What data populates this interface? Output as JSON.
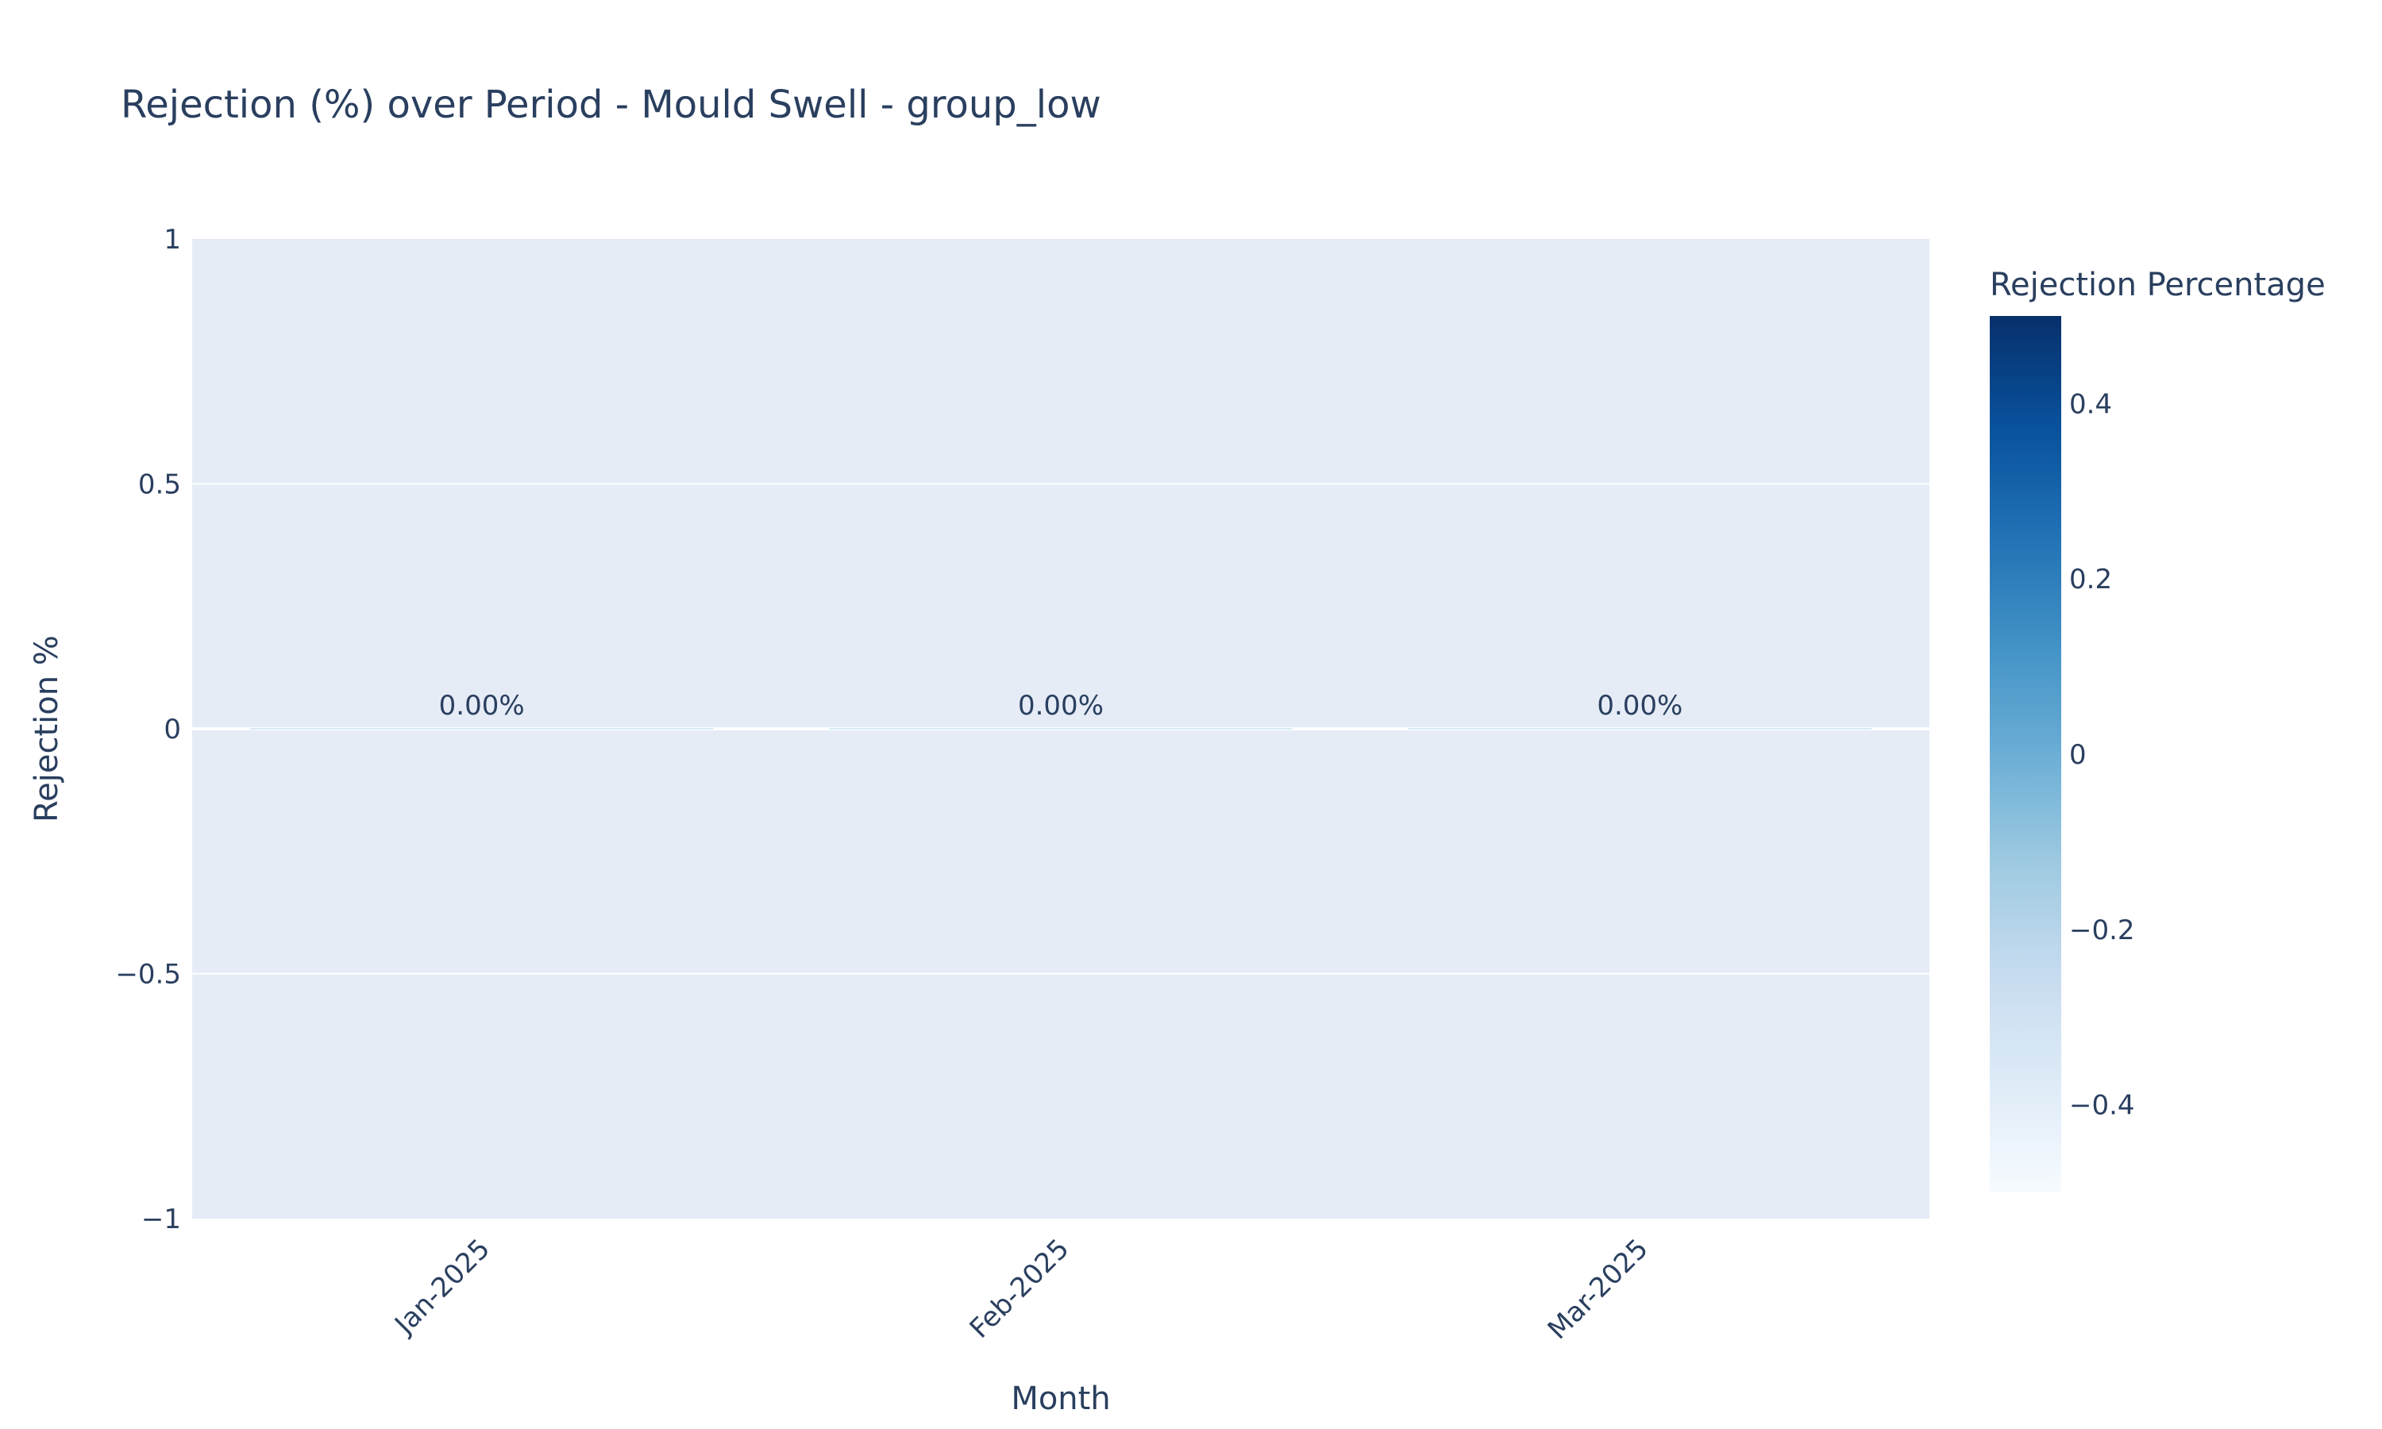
{
  "chart_data": {
    "type": "bar",
    "title": "Rejection (%) over Period - Mould Swell - group_low",
    "xlabel": "Month",
    "ylabel": "Rejection %",
    "categories": [
      "Jan-2025",
      "Feb-2025",
      "Mar-2025"
    ],
    "values": [
      0,
      0,
      0
    ],
    "data_labels": [
      "0.00%",
      "0.00%",
      "0.00%"
    ],
    "ylim": [
      -1,
      1
    ],
    "yticks": [
      1,
      0.5,
      0,
      -0.5,
      -1
    ],
    "ytick_labels": [
      "1",
      "0.5",
      "0",
      "−0.5",
      "−1"
    ],
    "x_tick_rotation": -45,
    "grid": true,
    "plot_background": "#e5ecf6",
    "colorbar": {
      "title": "Rejection Percentage",
      "range": [
        -0.5,
        0.5
      ],
      "ticks": [
        0.4,
        0.2,
        0,
        -0.2,
        -0.4
      ],
      "tick_labels": [
        "0.4",
        "0.2",
        "0",
        "−0.2",
        "−0.4"
      ],
      "colorscale": [
        "#f7fbff",
        "#deebf7",
        "#c6dbef",
        "#9ecae1",
        "#6baed6",
        "#4292c6",
        "#2171b5",
        "#08519c",
        "#08306b"
      ],
      "placement": "right"
    }
  }
}
